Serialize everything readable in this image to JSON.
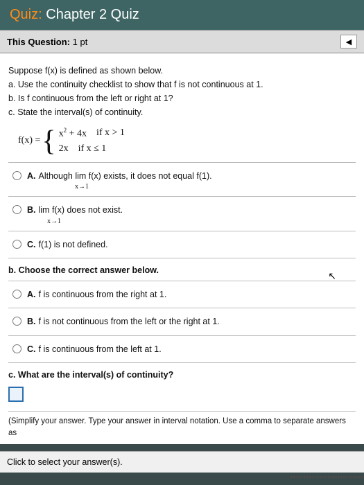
{
  "header": {
    "quiz_label": "Quiz:",
    "title": "Chapter 2 Quiz"
  },
  "subheader": {
    "label": "This Question:",
    "points": "1 pt"
  },
  "prompt": {
    "intro": "Suppose f(x) is defined as shown below.",
    "a": "a. Use the continuity checklist to show that f is not continuous at 1.",
    "b": "b. Is f continuous from the left or right at 1?",
    "c": "c. State the interval(s) of continuity."
  },
  "equation": {
    "lhs": "f(x) =",
    "p1_expr": "x",
    "p1_rest": " + 4x",
    "p1_cond": "if x > 1",
    "p2_expr": "2x",
    "p2_cond": "if x ≤ 1"
  },
  "partA": {
    "A": "Although  lim f(x) exists, it does not equal f(1).",
    "A_sub": "x→1",
    "B": "lim f(x) does not exist.",
    "B_sub": "x→1",
    "C": "f(1) is not defined."
  },
  "partB": {
    "label": "b. Choose the correct answer below.",
    "A": "f is continuous from the right at 1.",
    "B": "f is not continuous from the left or the right at 1.",
    "C": "f is continuous from the left at 1."
  },
  "partC": {
    "label": "c. What are the interval(s) of continuity?",
    "hint": "(Simplify your answer. Type your answer in interval notation. Use a comma to separate answers as"
  },
  "footer": {
    "text": "Click to select your answer(s)."
  },
  "colors": {
    "header_bg": "#3e6464",
    "accent": "#ff8c1a",
    "input_border": "#2b6fb0"
  }
}
